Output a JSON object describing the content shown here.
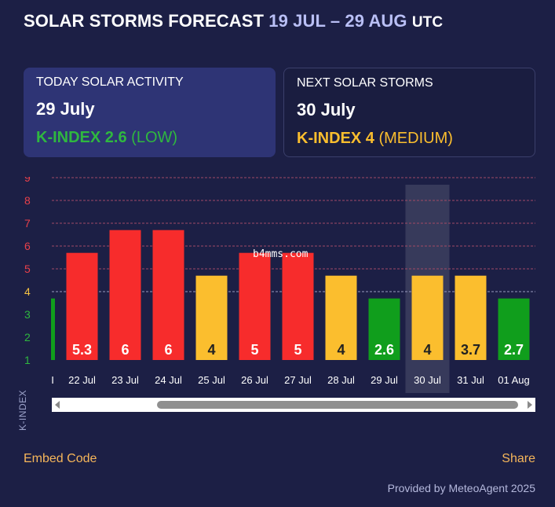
{
  "header": {
    "title": "SOLAR STORMS FORECAST",
    "range": "19 JUL – 29 AUG",
    "tz": "UTC"
  },
  "today": {
    "label": "TODAY SOLAR ACTIVITY",
    "date": "29 July",
    "kindex": "K-INDEX 2.6",
    "level": "(LOW)"
  },
  "next": {
    "label": "NEXT SOLAR STORMS",
    "date": "30 July",
    "kindex": "K-INDEX 4",
    "level": "(MEDIUM)"
  },
  "chart_data": {
    "type": "bar",
    "ylabel": "K-INDEX",
    "ylim": [
      1,
      9
    ],
    "yticks": [
      1,
      2,
      3,
      4,
      5,
      6,
      7,
      8,
      9
    ],
    "partial_left_category": "I",
    "partial_left_value": 2.7,
    "categories": [
      "22 Jul",
      "23 Jul",
      "24 Jul",
      "25 Jul",
      "26 Jul",
      "27 Jul",
      "28 Jul",
      "29 Jul",
      "30 Jul",
      "31 Jul",
      "01 Aug"
    ],
    "values": [
      5.3,
      6,
      6,
      4,
      5,
      5,
      4,
      2.6,
      4,
      3.7,
      2.7
    ],
    "bar_heights": [
      5.7,
      6.7,
      6.7,
      4.7,
      5.7,
      5.7,
      4.7,
      3.7,
      4.7,
      4.7,
      3.7
    ],
    "highlight_category": "30 Jul",
    "colors": {
      "low": "#109e1c",
      "medium": "#fbbe2e",
      "high": "#f72c2c",
      "tick_red": "#e8404a",
      "tick_yellow": "#f5c242",
      "tick_green": "#2fb83f"
    }
  },
  "footer": {
    "embed": "Embed Code",
    "share": "Share",
    "provided": "Provided by MeteoAgent 2025"
  },
  "watermark": "b4mms.com"
}
